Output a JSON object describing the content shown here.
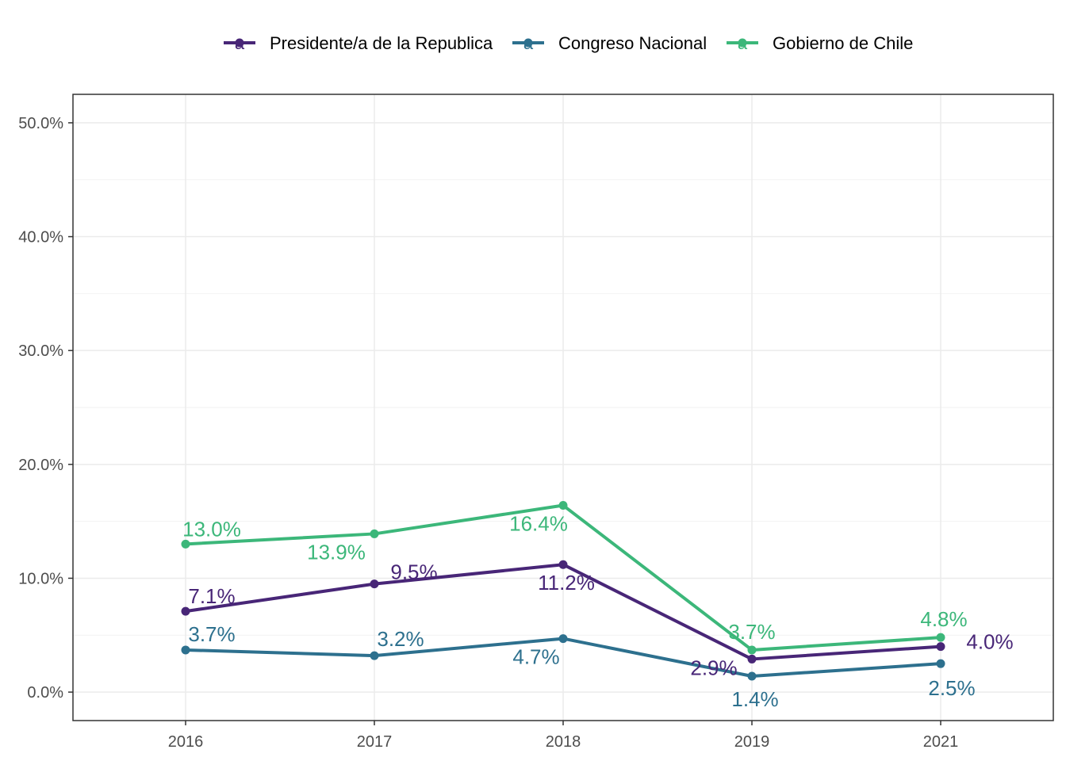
{
  "chart_data": {
    "type": "line",
    "title": "",
    "xlabel": "",
    "ylabel": "",
    "categories": [
      "2016",
      "2017",
      "2018",
      "2019",
      "2021"
    ],
    "ylim": [
      -2.5,
      52.5
    ],
    "y_ticks": [
      0,
      10,
      20,
      30,
      40,
      50
    ],
    "y_tick_labels": [
      "0.0%",
      "10.0%",
      "20.0%",
      "30.0%",
      "40.0%",
      "50.0%"
    ],
    "grid": true,
    "legend_position": "top",
    "series": [
      {
        "name": "Presidente/a de la Republica",
        "color": "#440154",
        "line_color": "#482677",
        "values": [
          7.1,
          9.5,
          11.2,
          2.9,
          4.0
        ],
        "labels": [
          "7.1%",
          "9.5%",
          "11.2%",
          "2.9%",
          "4.0%"
        ]
      },
      {
        "name": "Congreso Nacional",
        "color": "#2D708E",
        "line_color": "#2D708E",
        "values": [
          3.7,
          3.2,
          4.7,
          1.4,
          2.5
        ],
        "labels": [
          "3.7%",
          "3.2%",
          "4.7%",
          "1.4%",
          "2.5%"
        ]
      },
      {
        "name": "Gobierno de Chile",
        "color": "#29AF7F",
        "line_color": "#3CB77A",
        "values": [
          13.0,
          13.9,
          16.4,
          3.7,
          4.8
        ],
        "labels": [
          "13.0%",
          "13.9%",
          "16.4%",
          "3.7%",
          "4.8%"
        ]
      }
    ]
  },
  "legend_key_glyph": "a"
}
